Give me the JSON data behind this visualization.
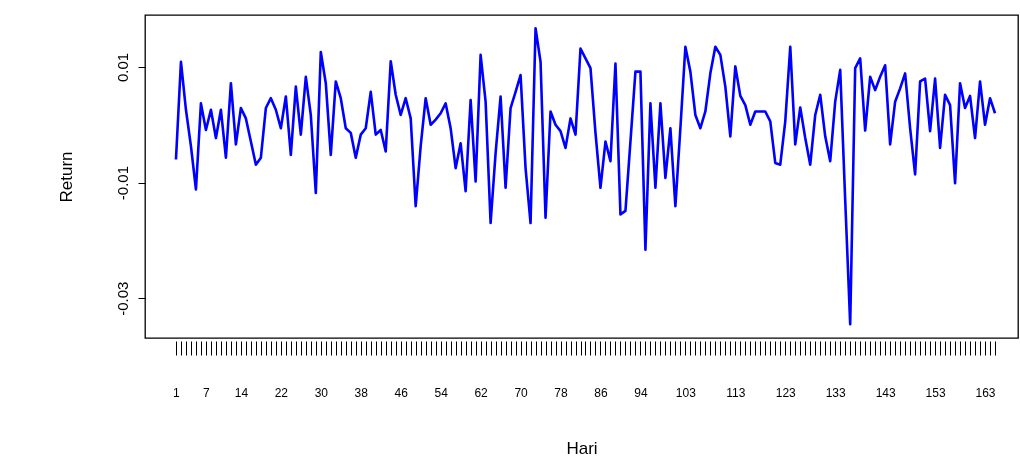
{
  "chart_data": {
    "type": "line",
    "xlabel": "Hari",
    "ylabel": "Return",
    "x": [
      1,
      2,
      3,
      4,
      5,
      6,
      7,
      8,
      9,
      10,
      11,
      12,
      13,
      14,
      15,
      16,
      17,
      18,
      19,
      20,
      21,
      22,
      23,
      24,
      25,
      26,
      27,
      28,
      29,
      30,
      31,
      32,
      33,
      34,
      35,
      36,
      37,
      38,
      39,
      40,
      41,
      42,
      43,
      44,
      45,
      46,
      47,
      48,
      49,
      50,
      51,
      52,
      53,
      54,
      55,
      56,
      57,
      58,
      59,
      60,
      61,
      62,
      63,
      64,
      65,
      66,
      67,
      68,
      69,
      70,
      71,
      72,
      73,
      74,
      75,
      76,
      77,
      78,
      79,
      80,
      81,
      82,
      83,
      84,
      85,
      86,
      87,
      88,
      89,
      90,
      91,
      92,
      93,
      94,
      95,
      96,
      97,
      98,
      99,
      100,
      101,
      102,
      103,
      104,
      105,
      106,
      107,
      108,
      109,
      110,
      111,
      112,
      113,
      114,
      115,
      116,
      117,
      118,
      119,
      120,
      121,
      122,
      123,
      124,
      125,
      126,
      127,
      128,
      129,
      130,
      131,
      132,
      133,
      134,
      135,
      136,
      137,
      138,
      139,
      140,
      141,
      142,
      143,
      144,
      145,
      146,
      147,
      148,
      149,
      150,
      151,
      152,
      153,
      154,
      155,
      156,
      157,
      158,
      159,
      160,
      161,
      162,
      163,
      164,
      165
    ],
    "series": [
      {
        "color": "#0000ff",
        "values": [
          -0.006,
          0.0109,
          0.0026,
          -0.0037,
          -0.0112,
          0.0037,
          -0.0009,
          0.0026,
          -0.0023,
          0.0026,
          -0.0057,
          0.0072,
          -0.0034,
          0.0029,
          0.0011,
          -0.0029,
          -0.0069,
          -0.0057,
          0.0029,
          0.0046,
          0.0026,
          -0.0006,
          0.0049,
          -0.0052,
          0.0066,
          -0.0017,
          0.0083,
          0.0017,
          -0.0118,
          0.0126,
          0.0072,
          -0.0052,
          0.0075,
          0.0046,
          -0.0006,
          -0.0014,
          -0.0057,
          -0.0017,
          -0.0006,
          0.0057,
          -0.0017,
          -0.0009,
          -0.0046,
          0.011,
          0.0052,
          0.0017,
          0.0046,
          0.0011,
          -0.0141,
          -0.0037,
          0.0046,
          0,
          0.0009,
          0.002,
          0.0037,
          -0.0006,
          -0.0075,
          -0.0032,
          -0.0115,
          0.0043,
          -0.0098,
          0.0121,
          0.004,
          -0.017,
          -0.0049,
          0.0049,
          -0.0109,
          0.0029,
          0.0057,
          0.0086,
          -0.0075,
          -0.017,
          0.0167,
          0.0109,
          -0.0161,
          0.0023,
          0,
          -0.0011,
          -0.004,
          0.0011,
          -0.0017,
          0.0132,
          0.0115,
          0.0098,
          -0.0014,
          -0.0109,
          -0.0029,
          -0.0063,
          0.0106,
          -0.0155,
          -0.0149,
          -0.0029,
          0.0092,
          0.0092,
          -0.0216,
          0.0037,
          -0.0109,
          0.0037,
          -0.0092,
          -0.0006,
          -0.0141,
          -0.0006,
          0.0135,
          0.0092,
          0.0017,
          -0.0006,
          0.0023,
          0.0089,
          0.0135,
          0.0121,
          0.0066,
          -0.002,
          0.0101,
          0.005,
          0.0034,
          0,
          0.0023,
          0.0023,
          0.0023,
          0.0006,
          -0.0066,
          -0.0069,
          0.0006,
          0.0135,
          -0.0034,
          0.003,
          -0.0023,
          -0.0069,
          0.0017,
          0.0052,
          -0.002,
          -0.0063,
          0.004,
          0.0095,
          -0.013,
          -0.0345,
          0.0098,
          0.0115,
          -0.001,
          0.0083,
          0.006,
          0.0083,
          0.0103,
          -0.0034,
          0.004,
          0.0063,
          0.0089,
          -0.0006,
          -0.0086,
          0.0075,
          0.008,
          -0.0011,
          0.008,
          -0.004,
          0.0052,
          0.0034,
          -0.0101,
          0.0072,
          0.0029,
          0.005,
          -0.0023,
          0.0075,
          0,
          0.0046,
          0.002
        ]
      }
    ],
    "xlim": [
      -5.2,
      169.6
    ],
    "ylim": [
      -0.0369,
      0.019
    ],
    "yticks": [
      -0.03,
      -0.01,
      0.01
    ],
    "xticks": [
      1,
      {
        "value": 2,
        "label": null
      },
      {
        "value": 3,
        "label": null
      },
      {
        "value": 4,
        "label": null
      },
      {
        "value": 5,
        "label": null
      },
      {
        "value": 6,
        "label": null
      },
      7,
      {
        "value": 8,
        "label": null
      },
      {
        "value": 9,
        "label": null
      },
      {
        "value": 10,
        "label": null
      },
      {
        "value": 11,
        "label": null
      },
      {
        "value": 12,
        "label": null
      },
      {
        "value": 13,
        "label": null
      },
      14,
      {
        "value": 15,
        "label": null
      },
      {
        "value": 16,
        "label": null
      },
      {
        "value": 17,
        "label": null
      },
      {
        "value": 18,
        "label": null
      },
      {
        "value": 19,
        "label": null
      },
      {
        "value": 20,
        "label": null
      },
      {
        "value": 21,
        "label": null
      },
      22,
      {
        "value": 23,
        "label": null
      },
      {
        "value": 24,
        "label": null
      },
      {
        "value": 25,
        "label": null
      },
      {
        "value": 26,
        "label": null
      },
      {
        "value": 27,
        "label": null
      },
      {
        "value": 28,
        "label": null
      },
      {
        "value": 29,
        "label": null
      },
      30,
      {
        "value": 31,
        "label": null
      },
      {
        "value": 32,
        "label": null
      },
      {
        "value": 33,
        "label": null
      },
      {
        "value": 34,
        "label": null
      },
      {
        "value": 35,
        "label": null
      },
      {
        "value": 36,
        "label": null
      },
      {
        "value": 37,
        "label": null
      },
      38,
      {
        "value": 39,
        "label": null
      },
      {
        "value": 40,
        "label": null
      },
      {
        "value": 41,
        "label": null
      },
      {
        "value": 42,
        "label": null
      },
      {
        "value": 43,
        "label": null
      },
      {
        "value": 44,
        "label": null
      },
      {
        "value": 45,
        "label": null
      },
      46,
      {
        "value": 47,
        "label": null
      },
      {
        "value": 48,
        "label": null
      },
      {
        "value": 49,
        "label": null
      },
      {
        "value": 50,
        "label": null
      },
      {
        "value": 51,
        "label": null
      },
      {
        "value": 52,
        "label": null
      },
      {
        "value": 53,
        "label": null
      },
      54,
      {
        "value": 55,
        "label": null
      },
      {
        "value": 56,
        "label": null
      },
      {
        "value": 57,
        "label": null
      },
      {
        "value": 58,
        "label": null
      },
      {
        "value": 59,
        "label": null
      },
      {
        "value": 60,
        "label": null
      },
      {
        "value": 61,
        "label": null
      },
      62,
      {
        "value": 63,
        "label": null
      },
      {
        "value": 64,
        "label": null
      },
      {
        "value": 65,
        "label": null
      },
      {
        "value": 66,
        "label": null
      },
      {
        "value": 67,
        "label": null
      },
      {
        "value": 68,
        "label": null
      },
      {
        "value": 69,
        "label": null
      },
      70,
      {
        "value": 71,
        "label": null
      },
      {
        "value": 72,
        "label": null
      },
      {
        "value": 73,
        "label": null
      },
      {
        "value": 74,
        "label": null
      },
      {
        "value": 75,
        "label": null
      },
      {
        "value": 76,
        "label": null
      },
      {
        "value": 77,
        "label": null
      },
      78,
      {
        "value": 79,
        "label": null
      },
      {
        "value": 80,
        "label": null
      },
      {
        "value": 81,
        "label": null
      },
      {
        "value": 82,
        "label": null
      },
      {
        "value": 83,
        "label": null
      },
      {
        "value": 84,
        "label": null
      },
      {
        "value": 85,
        "label": null
      },
      86,
      {
        "value": 87,
        "label": null
      },
      {
        "value": 88,
        "label": null
      },
      {
        "value": 89,
        "label": null
      },
      {
        "value": 90,
        "label": null
      },
      {
        "value": 91,
        "label": null
      },
      {
        "value": 92,
        "label": null
      },
      {
        "value": 93,
        "label": null
      },
      94,
      {
        "value": 95,
        "label": null
      },
      {
        "value": 96,
        "label": null
      },
      {
        "value": 97,
        "label": null
      },
      {
        "value": 98,
        "label": null
      },
      {
        "value": 99,
        "label": null
      },
      {
        "value": 100,
        "label": null
      },
      {
        "value": 101,
        "label": null
      },
      {
        "value": 102,
        "label": null
      },
      103,
      {
        "value": 104,
        "label": null
      },
      {
        "value": 105,
        "label": null
      },
      {
        "value": 106,
        "label": null
      },
      {
        "value": 107,
        "label": null
      },
      {
        "value": 108,
        "label": null
      },
      {
        "value": 109,
        "label": null
      },
      {
        "value": 110,
        "label": null
      },
      {
        "value": 111,
        "label": null
      },
      {
        "value": 112,
        "label": null
      },
      113,
      {
        "value": 114,
        "label": null
      },
      {
        "value": 115,
        "label": null
      },
      {
        "value": 116,
        "label": null
      },
      {
        "value": 117,
        "label": null
      },
      {
        "value": 118,
        "label": null
      },
      {
        "value": 119,
        "label": null
      },
      {
        "value": 120,
        "label": null
      },
      {
        "value": 121,
        "label": null
      },
      {
        "value": 122,
        "label": null
      },
      123,
      {
        "value": 124,
        "label": null
      },
      {
        "value": 125,
        "label": null
      },
      {
        "value": 126,
        "label": null
      },
      {
        "value": 127,
        "label": null
      },
      {
        "value": 128,
        "label": null
      },
      {
        "value": 129,
        "label": null
      },
      {
        "value": 130,
        "label": null
      },
      {
        "value": 131,
        "label": null
      },
      {
        "value": 132,
        "label": null
      },
      133,
      {
        "value": 134,
        "label": null
      },
      {
        "value": 135,
        "label": null
      },
      {
        "value": 136,
        "label": null
      },
      {
        "value": 137,
        "label": null
      },
      {
        "value": 138,
        "label": null
      },
      {
        "value": 139,
        "label": null
      },
      {
        "value": 140,
        "label": null
      },
      {
        "value": 141,
        "label": null
      },
      {
        "value": 142,
        "label": null
      },
      143,
      {
        "value": 144,
        "label": null
      },
      {
        "value": 145,
        "label": null
      },
      {
        "value": 146,
        "label": null
      },
      {
        "value": 147,
        "label": null
      },
      {
        "value": 148,
        "label": null
      },
      {
        "value": 149,
        "label": null
      },
      {
        "value": 150,
        "label": null
      },
      {
        "value": 151,
        "label": null
      },
      {
        "value": 152,
        "label": null
      },
      153,
      {
        "value": 154,
        "label": null
      },
      {
        "value": 155,
        "label": null
      },
      {
        "value": 156,
        "label": null
      },
      {
        "value": 157,
        "label": null
      },
      {
        "value": 158,
        "label": null
      },
      {
        "value": 159,
        "label": null
      },
      {
        "value": 160,
        "label": null
      },
      {
        "value": 161,
        "label": null
      },
      {
        "value": 162,
        "label": null
      },
      163,
      {
        "value": 164,
        "label": null
      },
      {
        "value": 165,
        "label": null
      }
    ],
    "grid": false,
    "marker": "none",
    "line_style": "solid"
  }
}
